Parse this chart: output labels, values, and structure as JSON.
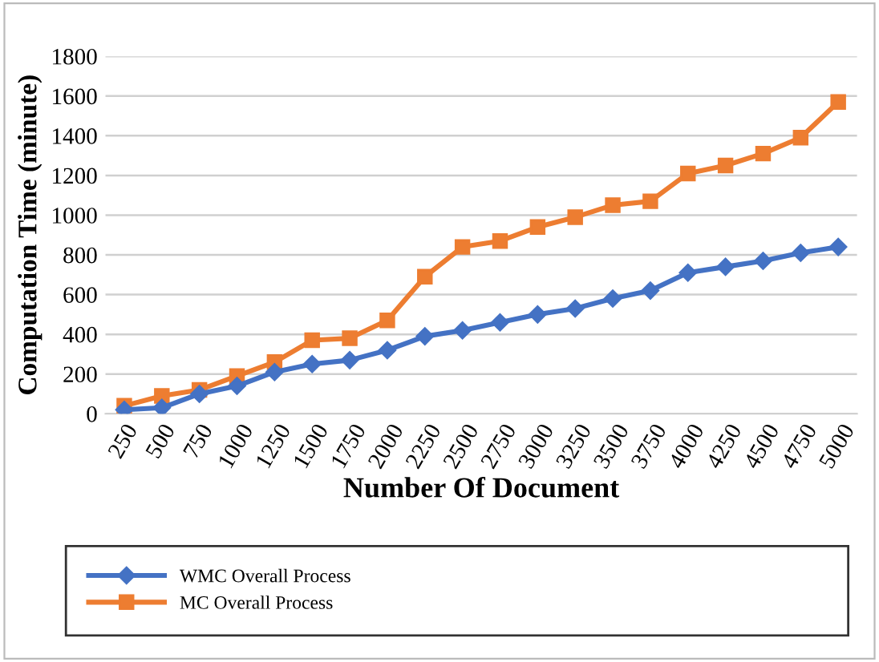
{
  "chart_data": {
    "type": "line",
    "xlabel": "Number Of Document",
    "ylabel": "Computation Time (minute)",
    "categories": [
      "250",
      "500",
      "750",
      "1000",
      "1250",
      "1500",
      "1750",
      "2000",
      "2250",
      "2500",
      "2750",
      "3000",
      "3250",
      "3500",
      "3750",
      "4000",
      "4250",
      "4500",
      "4750",
      "5000"
    ],
    "series": [
      {
        "name": "WMC Overall Process",
        "color": "#4472c4",
        "marker": "diamond",
        "values": [
          20,
          30,
          100,
          140,
          210,
          250,
          270,
          320,
          390,
          420,
          460,
          500,
          530,
          580,
          620,
          710,
          740,
          770,
          810,
          840
        ]
      },
      {
        "name": "MC Overall Process",
        "color": "#ed7d31",
        "marker": "square",
        "values": [
          40,
          90,
          120,
          190,
          260,
          370,
          380,
          470,
          690,
          840,
          870,
          940,
          990,
          1050,
          1070,
          1210,
          1250,
          1310,
          1390,
          1570
        ]
      }
    ],
    "ylim": [
      0,
      1800
    ],
    "yticks": [
      0,
      200,
      400,
      600,
      800,
      1000,
      1200,
      1400,
      1600,
      1800
    ],
    "grid": "y",
    "legend": "bottom"
  }
}
